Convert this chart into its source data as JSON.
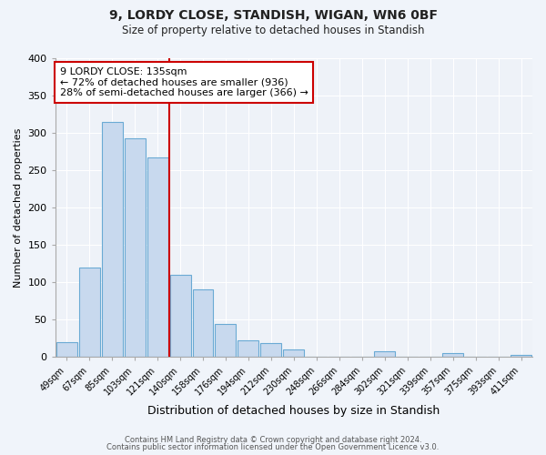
{
  "title": "9, LORDY CLOSE, STANDISH, WIGAN, WN6 0BF",
  "subtitle": "Size of property relative to detached houses in Standish",
  "xlabel": "Distribution of detached houses by size in Standish",
  "ylabel": "Number of detached properties",
  "bar_labels": [
    "49sqm",
    "67sqm",
    "85sqm",
    "103sqm",
    "121sqm",
    "140sqm",
    "158sqm",
    "176sqm",
    "194sqm",
    "212sqm",
    "230sqm",
    "248sqm",
    "266sqm",
    "284sqm",
    "302sqm",
    "321sqm",
    "339sqm",
    "357sqm",
    "375sqm",
    "393sqm",
    "411sqm"
  ],
  "bar_heights": [
    20,
    120,
    315,
    293,
    267,
    110,
    90,
    44,
    22,
    18,
    10,
    0,
    0,
    0,
    8,
    0,
    0,
    5,
    0,
    0,
    3
  ],
  "bar_color": "#c8d9ee",
  "bar_edge_color": "#6aaad4",
  "vline_color": "#cc0000",
  "annotation_title": "9 LORDY CLOSE: 135sqm",
  "annotation_line1": "← 72% of detached houses are smaller (936)",
  "annotation_line2": "28% of semi-detached houses are larger (366) →",
  "annotation_box_color": "#ffffff",
  "annotation_box_edge": "#cc0000",
  "ylim": [
    0,
    400
  ],
  "yticks": [
    0,
    50,
    100,
    150,
    200,
    250,
    300,
    350,
    400
  ],
  "footer1": "Contains HM Land Registry data © Crown copyright and database right 2024.",
  "footer2": "Contains public sector information licensed under the Open Government Licence v3.0.",
  "background_color": "#f0f4fa",
  "plot_bg_color": "#eef2f8",
  "grid_color": "#ffffff"
}
